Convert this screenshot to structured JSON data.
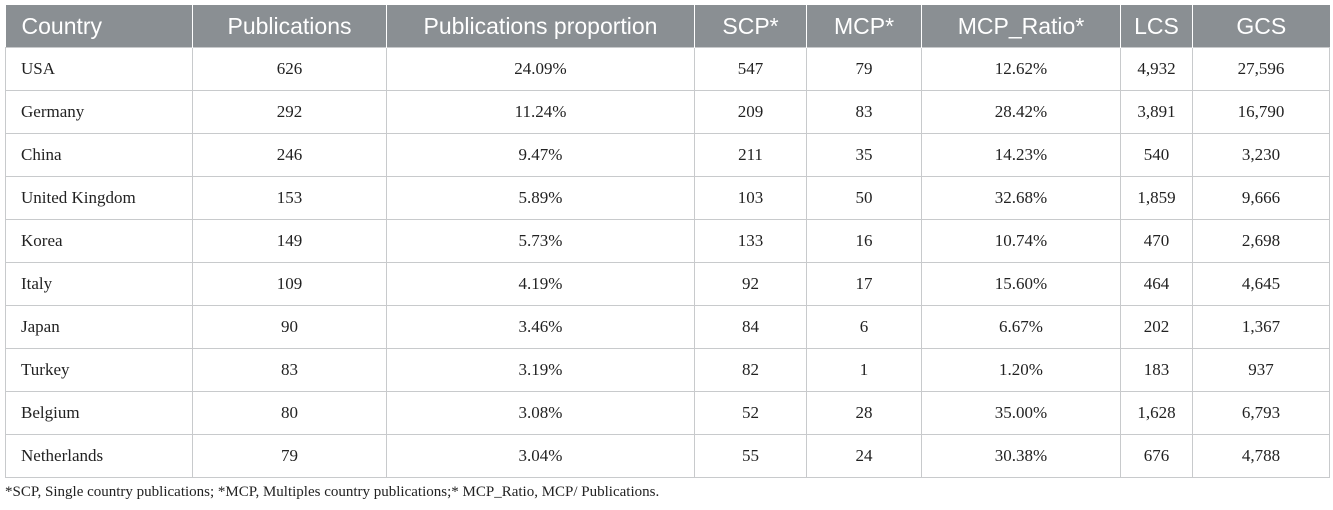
{
  "table": {
    "headers": [
      "Country",
      "Publications",
      "Publications proportion",
      "SCP*",
      "MCP*",
      "MCP_Ratio*",
      "LCS",
      "GCS"
    ],
    "rows": [
      [
        "USA",
        "626",
        "24.09%",
        "547",
        "79",
        "12.62%",
        "4,932",
        "27,596"
      ],
      [
        "Germany",
        "292",
        "11.24%",
        "209",
        "83",
        "28.42%",
        "3,891",
        "16,790"
      ],
      [
        "China",
        "246",
        "9.47%",
        "211",
        "35",
        "14.23%",
        "540",
        "3,230"
      ],
      [
        "United Kingdom",
        "153",
        "5.89%",
        "103",
        "50",
        "32.68%",
        "1,859",
        "9,666"
      ],
      [
        "Korea",
        "149",
        "5.73%",
        "133",
        "16",
        "10.74%",
        "470",
        "2,698"
      ],
      [
        "Italy",
        "109",
        "4.19%",
        "92",
        "17",
        "15.60%",
        "464",
        "4,645"
      ],
      [
        "Japan",
        "90",
        "3.46%",
        "84",
        "6",
        "6.67%",
        "202",
        "1,367"
      ],
      [
        "Turkey",
        "83",
        "3.19%",
        "82",
        "1",
        "1.20%",
        "183",
        "937"
      ],
      [
        "Belgium",
        "80",
        "3.08%",
        "52",
        "28",
        "35.00%",
        "1,628",
        "6,793"
      ],
      [
        "Netherlands",
        "79",
        "3.04%",
        "55",
        "24",
        "30.38%",
        "676",
        "4,788"
      ]
    ]
  },
  "footnote": "*SCP, Single country publications; *MCP, Multiples country publications;* MCP_Ratio, MCP/ Publications.",
  "colors": {
    "header_bg": "#8a8f93",
    "header_text": "#ffffff",
    "grid": "#c8cacc"
  }
}
